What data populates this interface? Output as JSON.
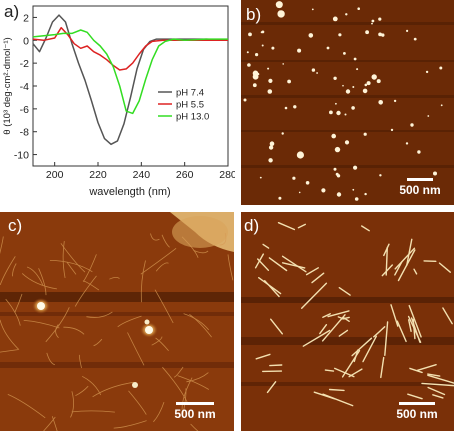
{
  "panels": {
    "a": {
      "label": "a)"
    },
    "b": {
      "label": "b)",
      "scale_bar": "500 nm"
    },
    "c": {
      "label": "c)",
      "scale_bar": "500 nm"
    },
    "d": {
      "label": "d)",
      "scale_bar": "500 nm"
    }
  },
  "chart_data": {
    "type": "line",
    "xlabel": "wavelength (nm)",
    "ylabel": "θ (10³ deg·cm²·dmol⁻¹)",
    "xlim": [
      190,
      280
    ],
    "ylim": [
      -11,
      3
    ],
    "x_ticks": [
      200,
      220,
      240,
      260,
      280
    ],
    "x_tick_labels": [
      "200",
      "220",
      "240",
      "260",
      "280"
    ],
    "y_ticks": [
      2,
      0,
      -2,
      -4,
      -6,
      -8,
      -10
    ],
    "y_tick_labels": [
      "2",
      "0",
      "-2",
      "-4",
      "-6",
      "-8",
      "-10"
    ],
    "legend_position": "right",
    "series": [
      {
        "name": "pH 7.4",
        "color": "#555555",
        "x": [
          190,
          193,
          196,
          199,
          202,
          205,
          208,
          211,
          214,
          217,
          220,
          223,
          226,
          229,
          232,
          235,
          238,
          241,
          244,
          247,
          250,
          260,
          270,
          280
        ],
        "y": [
          -0.3,
          -1.0,
          0.2,
          1.6,
          2.2,
          1.6,
          -0.3,
          -2.0,
          -3.5,
          -5.3,
          -7.2,
          -8.6,
          -9.1,
          -8.8,
          -7.3,
          -5.0,
          -2.5,
          -0.8,
          -0.1,
          0.1,
          0.1,
          0.1,
          0.1,
          0.0
        ]
      },
      {
        "name": "pH 5.5",
        "color": "#dd2222",
        "x": [
          190,
          195,
          200,
          203,
          206,
          209,
          212,
          215,
          218,
          221,
          224,
          227,
          230,
          233,
          236,
          239,
          242,
          245,
          250,
          260,
          270,
          280
        ],
        "y": [
          0.1,
          0.0,
          0.2,
          1.1,
          0.5,
          -0.3,
          -0.7,
          -0.5,
          -1.0,
          -1.3,
          -1.7,
          -2.2,
          -2.6,
          -2.5,
          -2.0,
          -1.2,
          -0.5,
          -0.1,
          0.0,
          0.0,
          0.0,
          0.0
        ]
      },
      {
        "name": "pH 13.0",
        "color": "#33dd22",
        "x": [
          190,
          195,
          200,
          204,
          208,
          212,
          215,
          218,
          221,
          224,
          227,
          230,
          233,
          236,
          239,
          242,
          245,
          248,
          251,
          255,
          260,
          270,
          280
        ],
        "y": [
          0.3,
          0.4,
          0.5,
          0.6,
          0.6,
          0.9,
          0.7,
          0.0,
          -0.5,
          -1.2,
          -2.3,
          -4.0,
          -6.2,
          -6.4,
          -5.3,
          -3.4,
          -1.7,
          -0.5,
          -0.1,
          0.1,
          0.0,
          0.1,
          0.1
        ]
      }
    ]
  },
  "colors": {
    "afm_background": "#6b2a06",
    "afm_feature": "#f4e2b0"
  }
}
